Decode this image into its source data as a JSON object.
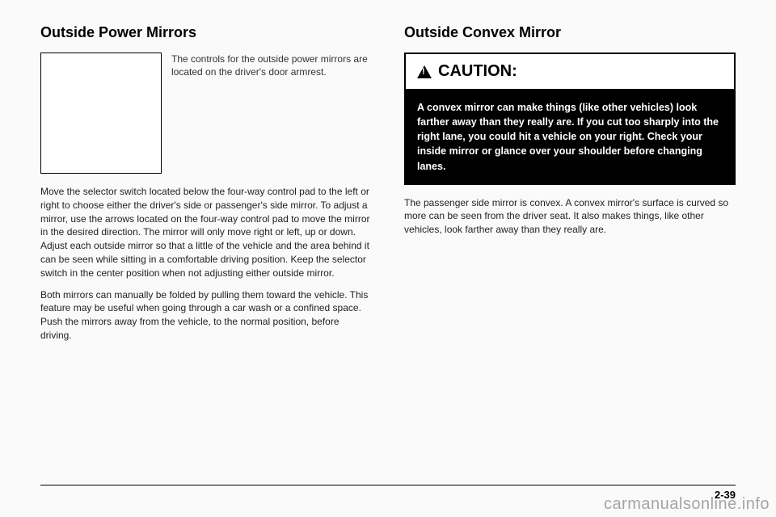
{
  "left": {
    "heading": "Outside Power Mirrors",
    "img_caption": "The controls for the outside power mirrors are located on the driver's door armrest.",
    "para1": "Move the selector switch located below the four-way control pad to the left or right to choose either the driver's side or passenger's side mirror. To adjust a mirror, use the arrows located on the four-way control pad to move the mirror in the desired direction. The mirror will only move right or left, up or down. Adjust each outside mirror so that a little of the vehicle and the area behind it can be seen while sitting in a comfortable driving position. Keep the selector switch in the center position when not adjusting either outside mirror.",
    "para2": "Both mirrors can manually be folded by pulling them toward the vehicle. This feature may be useful when going through a car wash or a confined space. Push the mirrors away from the vehicle, to the normal position, before driving."
  },
  "right": {
    "heading": "Outside Convex Mirror",
    "caution_label": "CAUTION:",
    "caution_body": "A convex mirror can make things (like other vehicles) look farther away than they really are. If you cut too sharply into the right lane, you could hit a vehicle on your right. Check your inside mirror or glance over your shoulder before changing lanes.",
    "para1": "The passenger side mirror is convex. A convex mirror's surface is curved so more can be seen from the driver seat. It also makes things, like other vehicles, look farther away than they really are."
  },
  "page_number": "2-39",
  "watermark": "carmanualsonline.info"
}
